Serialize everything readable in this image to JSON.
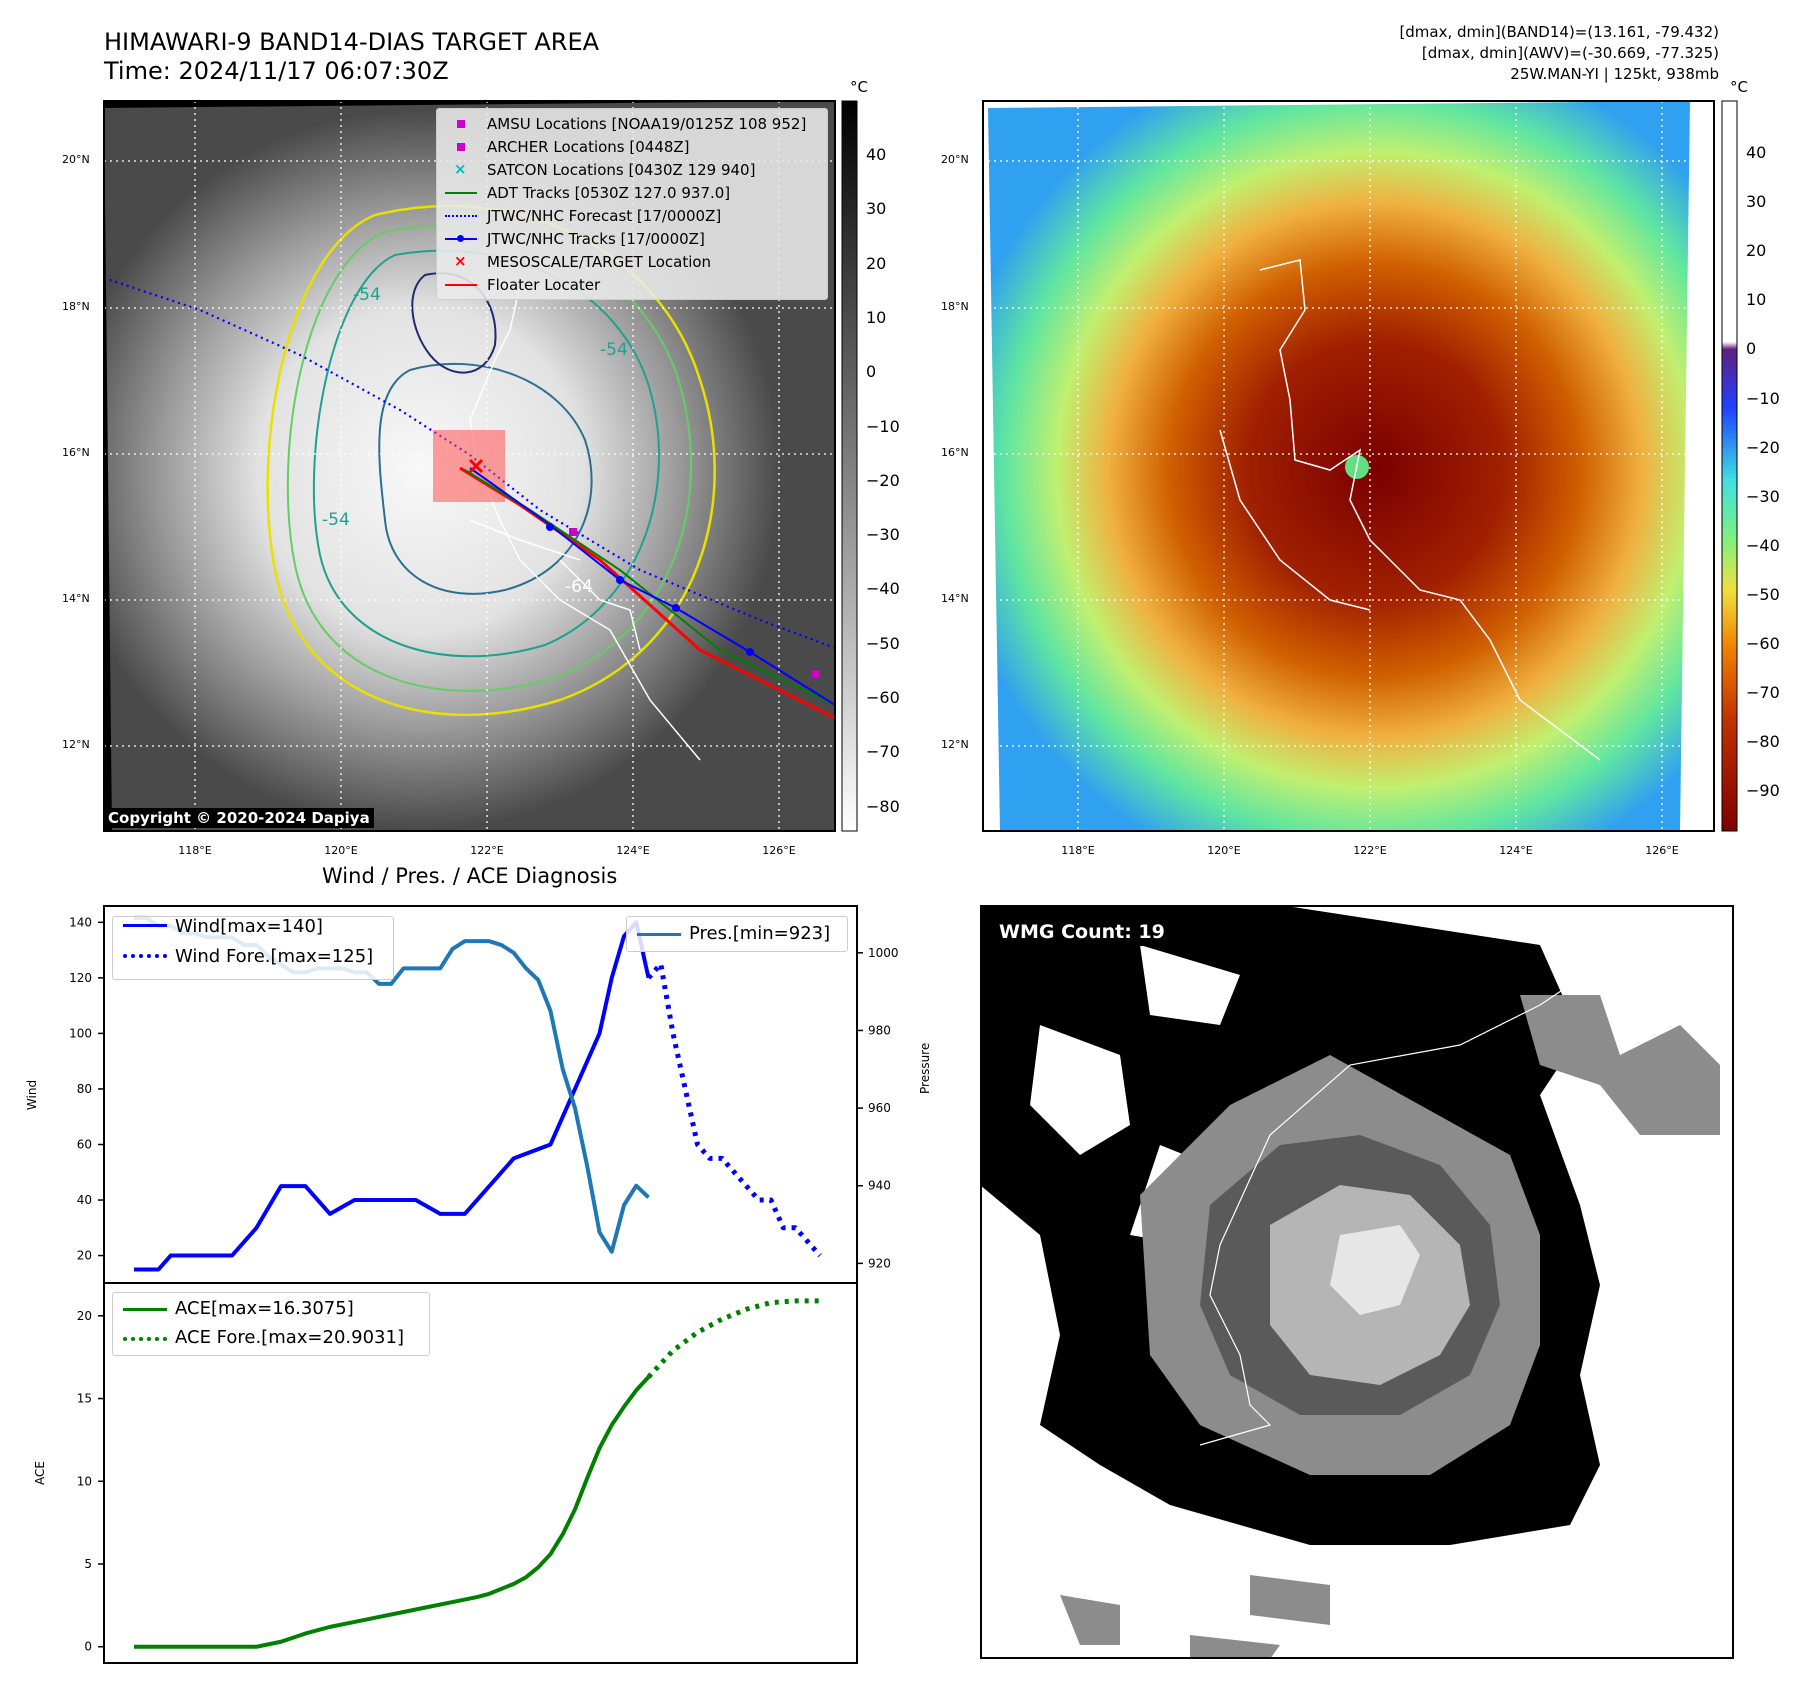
{
  "header": {
    "title_line1": "HIMAWARI-9 BAND14-DIAS TARGET AREA",
    "title_line2": "Time: 2024/11/17 06:07:30Z",
    "info_line1": "[dmax, dmin](BAND14)=(13.161, -79.432)",
    "info_line2": "[dmax, dmin](AWV)=(-30.669, -77.325)",
    "info_line3": "25W.MAN-YI | 125kt, 938mb"
  },
  "colors": {
    "wind": "#0000ff",
    "pressure": "#1f77b4",
    "ace": "#008000",
    "adt": "#008000",
    "amsu": "#cc00cc",
    "satcon": "#00bbbb",
    "floater": "#ff0000",
    "mesoscale": "#ff0000"
  },
  "map_axes": {
    "lat_labels": [
      "20°N",
      "18°N",
      "16°N",
      "14°N",
      "12°N"
    ],
    "lon_labels": [
      "118°E",
      "120°E",
      "122°E",
      "124°E",
      "126°E"
    ]
  },
  "map1": {
    "copyright": "Copyright © 2020-2024 Dapiya",
    "colorbar_unit": "°C",
    "colorbar_ticks": [
      "40",
      "30",
      "20",
      "10",
      "0",
      "−10",
      "−20",
      "−30",
      "−40",
      "−50",
      "−60",
      "−70",
      "−80"
    ],
    "contour_labels": [
      "-54",
      "-54",
      "-54",
      "-64"
    ],
    "legend": [
      {
        "label": "AMSU Locations [NOAA19/0125Z 108 952]",
        "marker": "square",
        "color": "#cc00cc"
      },
      {
        "label": "ARCHER Locations [0448Z]",
        "marker": "square",
        "color": "#cc00cc"
      },
      {
        "label": "SATCON Locations [0430Z 129 940]",
        "marker": "x",
        "color": "#00bbbb"
      },
      {
        "label": "ADT Tracks [0530Z 127.0 937.0]",
        "marker": "line",
        "color": "#008000"
      },
      {
        "label": "JTWC/NHC Forecast [17/0000Z]",
        "marker": "dotted",
        "color": "#0000ff"
      },
      {
        "label": "JTWC/NHC Tracks [17/0000Z]",
        "marker": "line-dot",
        "color": "#0000ff"
      },
      {
        "label": "MESOSCALE/TARGET Location",
        "marker": "x",
        "color": "#ff0000"
      },
      {
        "label": "Floater Locater",
        "marker": "line",
        "color": "#ff0000"
      }
    ]
  },
  "map2": {
    "colorbar_unit": "°C",
    "colorbar_ticks": [
      "40",
      "30",
      "20",
      "10",
      "0",
      "−10",
      "−20",
      "−30",
      "−40",
      "−50",
      "−60",
      "−70",
      "−80",
      "−90"
    ]
  },
  "diag": {
    "title": "Wind / Pres. / ACE Diagnosis",
    "wind_ylabel": "Wind",
    "pres_ylabel": "Pressure",
    "ace_ylabel": "ACE",
    "wind_legend": "Wind[max=140]",
    "wind_fore_legend": "Wind Fore.[max=125]",
    "pres_legend": "Pres.[min=923]",
    "ace_legend": "ACE[max=16.3075]",
    "ace_fore_legend": "ACE Fore.[max=20.9031]"
  },
  "wmg": {
    "label": "WMG Count: 19"
  },
  "chart_data": [
    {
      "type": "line",
      "title": "Wind / Pres. / ACE Diagnosis",
      "ylabel": "Wind",
      "ylim": [
        13,
        143
      ],
      "y_ticks": [
        20,
        40,
        60,
        80,
        100,
        120,
        140
      ],
      "x_range": [
        0,
        55
      ],
      "series": [
        {
          "name": "Wind[max=140]",
          "style": "solid",
          "x": [
            0,
            2,
            3,
            5,
            8,
            10,
            12,
            14,
            16,
            18,
            20,
            23,
            25,
            27,
            29,
            31,
            34,
            36,
            37,
            38,
            39,
            40,
            41,
            42
          ],
          "values": [
            15,
            15,
            20,
            20,
            20,
            30,
            45,
            45,
            35,
            40,
            40,
            40,
            35,
            35,
            45,
            55,
            60,
            80,
            90,
            100,
            120,
            135,
            140,
            120
          ]
        },
        {
          "name": "Wind Fore.[max=125]",
          "style": "dotted",
          "x": [
            42,
            43,
            44,
            45,
            46,
            47,
            48,
            49,
            50,
            51,
            52,
            53,
            54,
            55,
            56
          ],
          "values": [
            120,
            125,
            100,
            80,
            60,
            55,
            55,
            50,
            45,
            40,
            40,
            30,
            30,
            25,
            20
          ]
        }
      ]
    },
    {
      "type": "line",
      "ylabel": "Pressure",
      "ylim": [
        917,
        1010
      ],
      "y_ticks": [
        920,
        940,
        960,
        980,
        1000
      ],
      "series": [
        {
          "name": "Pres.[min=923]",
          "style": "solid",
          "x": [
            0,
            1,
            2,
            3,
            4,
            5,
            6,
            7,
            8,
            9,
            10,
            11,
            12,
            13,
            14,
            15,
            16,
            17,
            18,
            19,
            20,
            21,
            22,
            23,
            24,
            25,
            26,
            27,
            28,
            29,
            30,
            31,
            32,
            33,
            34,
            35,
            36,
            37,
            38,
            39,
            40,
            41,
            42
          ],
          "values": [
            1009,
            1009,
            1007,
            1007,
            1005,
            1005,
            1004,
            1004,
            1004,
            1002,
            1002,
            999,
            997,
            995,
            995,
            996,
            996,
            996,
            995,
            995,
            992,
            992,
            996,
            996,
            996,
            996,
            1001,
            1003,
            1003,
            1003,
            1002,
            1000,
            996,
            993,
            985,
            970,
            960,
            945,
            928,
            923,
            935,
            940,
            937
          ]
        }
      ]
    },
    {
      "type": "line",
      "ylabel": "ACE",
      "ylim": [
        -0.5,
        21.5
      ],
      "y_ticks": [
        0,
        5,
        10,
        15,
        20
      ],
      "series": [
        {
          "name": "ACE[max=16.3075]",
          "style": "solid",
          "x": [
            0,
            4,
            8,
            10,
            12,
            14,
            16,
            18,
            20,
            22,
            24,
            26,
            28,
            29,
            30,
            31,
            32,
            33,
            34,
            35,
            36,
            37,
            38,
            39,
            40,
            41,
            42
          ],
          "values": [
            0,
            0,
            0,
            0,
            0.3,
            0.8,
            1.2,
            1.5,
            1.8,
            2.1,
            2.4,
            2.7,
            3.0,
            3.2,
            3.5,
            3.8,
            4.2,
            4.8,
            5.6,
            6.8,
            8.3,
            10.2,
            12.0,
            13.4,
            14.5,
            15.5,
            16.3
          ]
        },
        {
          "name": "ACE Fore.[max=20.9031]",
          "style": "dotted",
          "x": [
            42,
            44,
            46,
            48,
            50,
            52,
            54,
            56
          ],
          "values": [
            16.3,
            17.9,
            19.0,
            19.8,
            20.4,
            20.8,
            20.9,
            20.9
          ]
        }
      ]
    }
  ]
}
